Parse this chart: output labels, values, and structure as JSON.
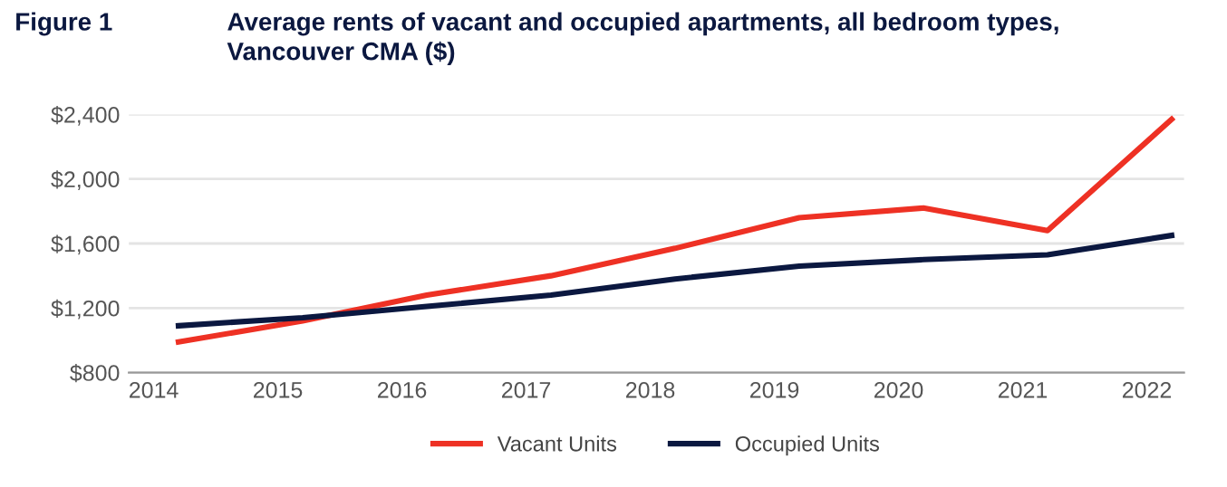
{
  "chart_data": {
    "type": "line",
    "title": "Average rents of vacant and occupied apartments, all bedroom types,\nVancouver CMA ($)",
    "annotations": [
      "Figure 1"
    ],
    "x": [
      2014.2,
      2015.2,
      2016.2,
      2017.2,
      2018.2,
      2019.2,
      2020.2,
      2021.2,
      2022.2
    ],
    "series": [
      {
        "name": "Vacant Units",
        "color": "#ee3124",
        "values": [
          990,
          1120,
          1280,
          1400,
          1570,
          1760,
          1820,
          1680,
          2370
        ]
      },
      {
        "name": "Occupied Units",
        "color": "#0b1840",
        "values": [
          1090,
          1140,
          1210,
          1280,
          1380,
          1460,
          1500,
          1530,
          1650
        ]
      }
    ],
    "xlim": [
      2013.8,
      2022.3
    ],
    "xticks": [
      2014,
      2015,
      2016,
      2017,
      2018,
      2019,
      2020,
      2021,
      2022
    ],
    "ylim": [
      800,
      2400
    ],
    "yticks": [
      {
        "value": 800,
        "label": "$800"
      },
      {
        "value": 1200,
        "label": "$1,200"
      },
      {
        "value": 1600,
        "label": "$1,600"
      },
      {
        "value": 2000,
        "label": "$2,000"
      },
      {
        "value": 2400,
        "label": "$2,400"
      }
    ],
    "grid": "y",
    "legend": "bottom",
    "line_style": "solid",
    "marker": "none"
  }
}
